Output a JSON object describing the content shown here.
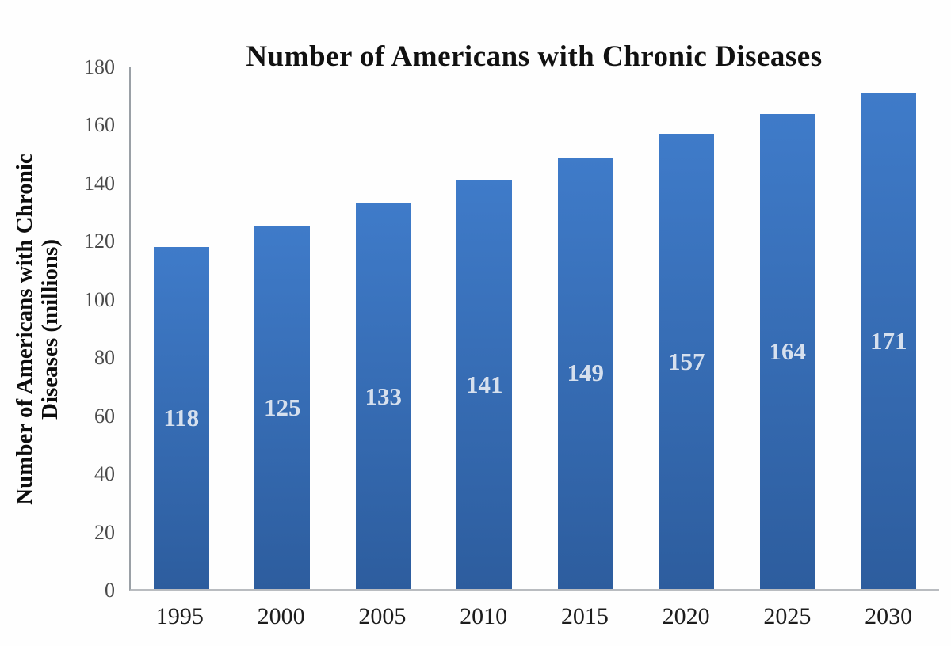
{
  "chart_data": {
    "type": "bar",
    "title": "Number of Americans with Chronic Diseases",
    "categories": [
      "1995",
      "2000",
      "2005",
      "2010",
      "2015",
      "2020",
      "2025",
      "2030"
    ],
    "values": [
      118,
      125,
      133,
      141,
      149,
      157,
      164,
      171
    ],
    "xlabel": "",
    "ylabel": "Number of Americans with Chronic Diseases (millions)",
    "ylabel_line1": "Number of Americans with Chronic",
    "ylabel_line2": "Diseases (millions)",
    "ylim": [
      0,
      180
    ],
    "yticks": [
      0,
      20,
      40,
      60,
      80,
      100,
      120,
      140,
      160,
      180
    ],
    "grid": false,
    "legend": false,
    "data_labels_position": "center",
    "colors": {
      "bar_gradient_top": "#3f7bc9",
      "bar_gradient_bottom": "#2d5d9e",
      "data_label": "#d6e0ee",
      "axis_line": "#9aa0a6",
      "tick_label": "#4a4a4a",
      "title_text": "#111111"
    }
  }
}
